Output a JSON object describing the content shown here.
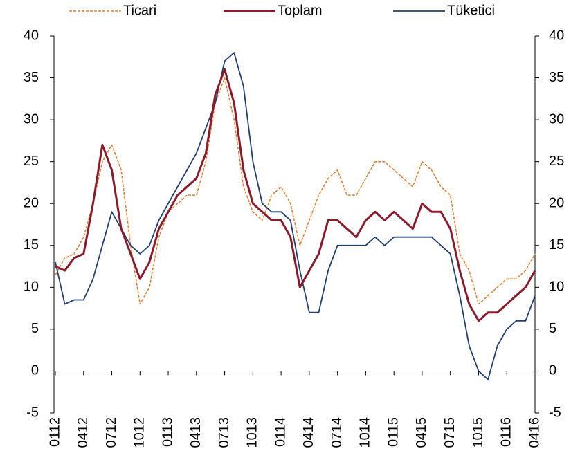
{
  "chart_data": {
    "type": "line",
    "categories": [
      "0112",
      null,
      null,
      "0412",
      null,
      null,
      "0712",
      null,
      null,
      "1012",
      null,
      null,
      "0113",
      null,
      null,
      "0413",
      null,
      null,
      "0713",
      null,
      null,
      "1013",
      null,
      null,
      "0114",
      null,
      null,
      "0414",
      null,
      null,
      "0714",
      null,
      null,
      "1014",
      null,
      null,
      "0115",
      null,
      null,
      "0415",
      null,
      null,
      "0715",
      null,
      null,
      "1015",
      null,
      null,
      "0116",
      null,
      null,
      "0416"
    ],
    "series": [
      {
        "name": "Ticari",
        "color": "#E87722",
        "dash": true,
        "values": [
          11.5,
          13.5,
          14,
          16,
          20,
          25,
          27,
          24,
          15,
          8,
          10,
          16,
          19,
          20,
          21,
          21,
          25,
          32,
          35,
          30,
          22,
          19,
          18,
          21,
          22,
          20,
          15,
          18,
          21,
          23,
          24,
          21,
          21,
          23,
          25,
          25,
          24,
          23,
          22,
          25,
          24,
          22,
          21,
          14,
          12,
          8,
          9,
          10,
          11,
          11,
          12,
          14
        ]
      },
      {
        "name": "Toplam",
        "color": "#8B1A2B",
        "dash": false,
        "values": [
          12.5,
          12,
          13.5,
          14,
          20,
          27,
          24,
          17,
          14,
          11,
          13,
          17,
          19,
          21,
          22,
          23,
          26,
          33,
          36,
          32,
          24,
          20,
          19,
          18,
          18,
          16,
          10,
          12,
          14,
          18,
          18,
          17,
          16,
          18,
          19,
          18,
          19,
          18,
          17,
          20,
          19,
          19,
          17,
          12,
          8,
          6,
          7,
          7,
          8,
          9,
          10,
          12
        ]
      },
      {
        "name": "Tüketici",
        "color": "#1F3F73",
        "dash": false,
        "values": [
          13,
          8,
          8.5,
          8.5,
          11,
          15,
          19,
          17,
          15,
          14,
          15,
          18,
          20,
          22,
          24,
          26,
          29,
          32,
          37,
          38,
          34,
          25,
          20,
          19,
          19,
          18,
          12,
          7,
          7,
          12,
          15,
          15,
          15,
          15,
          16,
          15,
          16,
          16,
          16,
          16,
          16,
          15,
          14,
          9,
          3,
          0,
          -1,
          3,
          5,
          6,
          6,
          9
        ]
      }
    ],
    "ylim": [
      -5,
      40
    ],
    "yticks": [
      -5,
      0,
      5,
      10,
      15,
      20,
      25,
      30,
      35,
      40
    ],
    "y2lim": [
      -5,
      40
    ],
    "y2ticks": [
      -5,
      0,
      5,
      10,
      15,
      20,
      25,
      30,
      35,
      40
    ],
    "legend": "top"
  }
}
